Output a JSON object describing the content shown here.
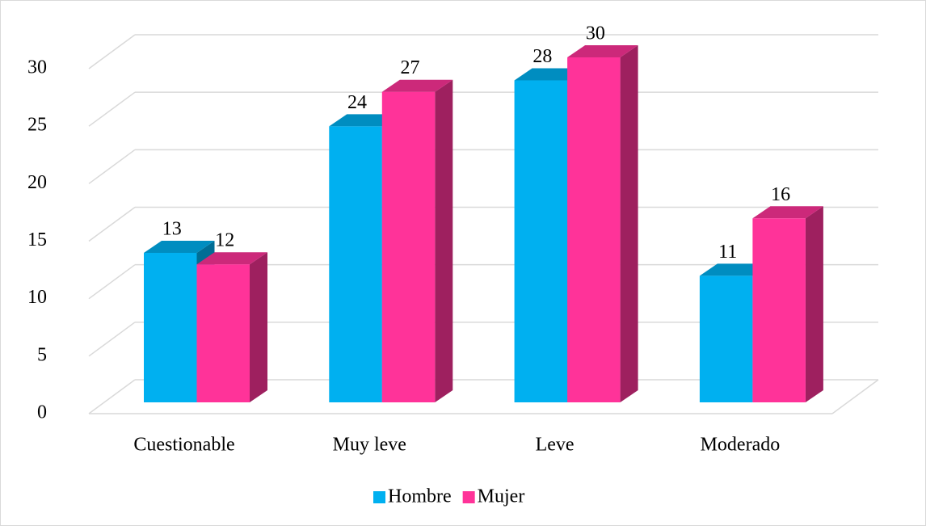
{
  "chart_data": {
    "type": "bar3d",
    "categories": [
      "Cuestionable",
      "Muy leve",
      "Leve",
      "Moderado"
    ],
    "series": [
      {
        "name": "Hombre",
        "color": "#00b0f0",
        "values": [
          13,
          24,
          28,
          11
        ]
      },
      {
        "name": "Mujer",
        "color": "#ff3399",
        "values": [
          12,
          27,
          30,
          16
        ]
      }
    ],
    "ylim": [
      0,
      30
    ],
    "yticks": [
      0,
      5,
      10,
      15,
      20,
      25,
      30
    ],
    "grid": true,
    "legend": "bottom"
  }
}
